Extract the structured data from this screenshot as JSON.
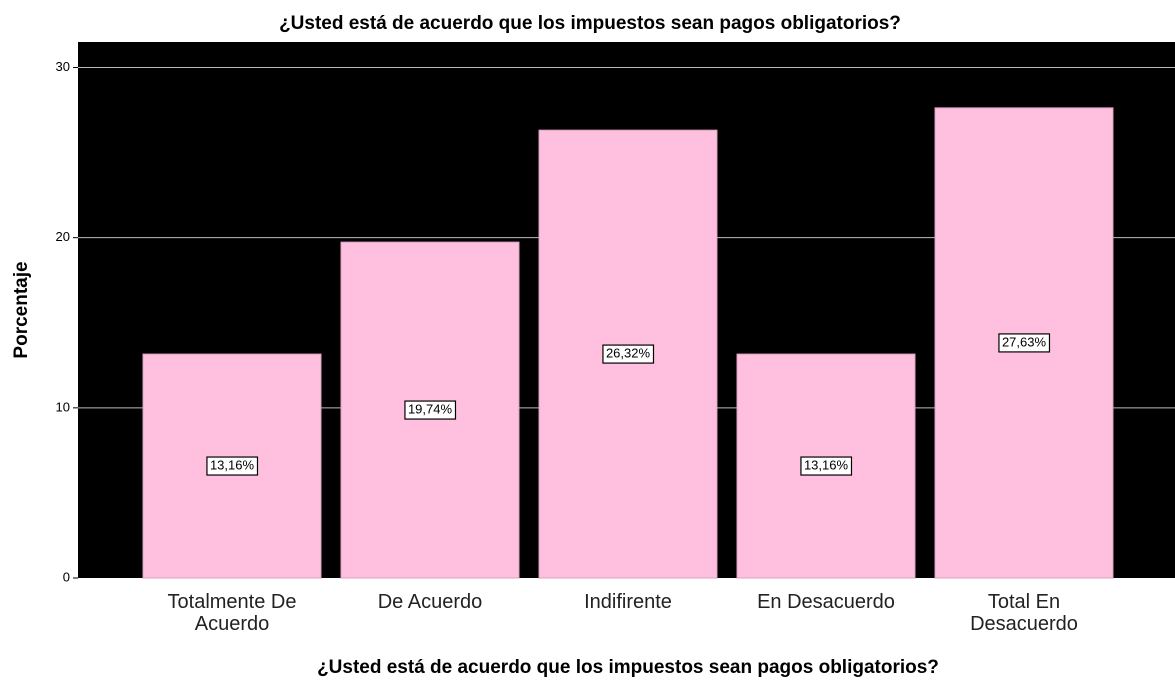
{
  "chart_data": {
    "type": "bar",
    "title": "¿Usted está de acuerdo que los impuestos sean pagos obligatorios?",
    "x_label": "¿Usted está de acuerdo que los impuestos sean pagos obligatorios?",
    "y_label": "Porcentaje",
    "categories": [
      "Totalmente De Acuerdo",
      "De Acuerdo",
      "Indifirente",
      "En Desacuerdo",
      "Total En Desacuerdo"
    ],
    "values": [
      13.16,
      19.74,
      26.32,
      13.16,
      27.63
    ],
    "value_labels": [
      "13,16%",
      "19,74%",
      "26,32%",
      "13,16%",
      "27,63%"
    ],
    "color": "#ffc0e0",
    "ylim": [
      0,
      31.5
    ],
    "yticks": [
      0,
      10,
      20,
      30
    ],
    "grid": true
  }
}
